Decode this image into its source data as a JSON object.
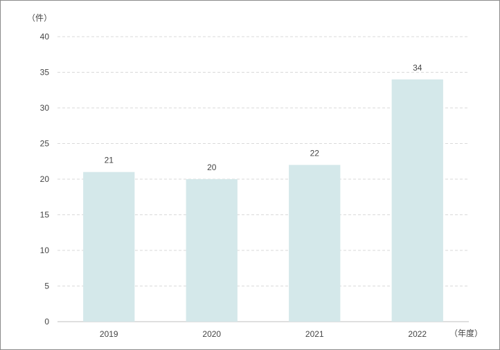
{
  "chart_data": {
    "type": "bar",
    "categories": [
      "2019",
      "2020",
      "2021",
      "2022"
    ],
    "values": [
      21,
      20,
      22,
      34
    ],
    "data_labels": [
      "21",
      "20",
      "22",
      "34"
    ],
    "y_unit_label": "（件）",
    "x_unit_label": "（年度）",
    "ylim": [
      0,
      40
    ],
    "y_ticks": [
      0,
      5,
      10,
      15,
      20,
      25,
      30,
      35,
      40
    ],
    "grid": true,
    "grid_style": "dashed",
    "bar_color": "#d4e8ea",
    "grid_color": "#d9d9d9",
    "axis_color": "#bfbfbf"
  }
}
